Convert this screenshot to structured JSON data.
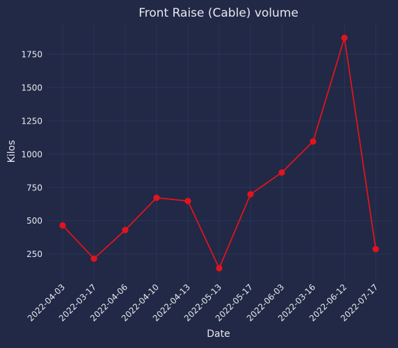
{
  "chart_data": {
    "type": "line",
    "title": "Front Raise (Cable) volume",
    "xlabel": "Date",
    "ylabel": "Kilos",
    "categories": [
      "2022-04-03",
      "2022-03-17",
      "2022-04-06",
      "2022-04-10",
      "2022-04-13",
      "2022-05-13",
      "2022-05-17",
      "2022-06-03",
      "2022-03-16",
      "2022-06-12",
      "2022-07-17"
    ],
    "series": [
      {
        "values": [
          465,
          215,
          430,
          672,
          648,
          143,
          698,
          862,
          1095,
          1873,
          287
        ]
      }
    ],
    "yticks": [
      250,
      500,
      750,
      1000,
      1250,
      1500,
      1750
    ],
    "ytick_labels": [
      "250",
      "500",
      "750",
      "1000",
      "1250",
      "1500",
      "1750"
    ],
    "ylim": [
      50,
      1980
    ],
    "grid": true,
    "legend": "none"
  },
  "colors": {
    "background": "#212946",
    "grid": "#2A3459",
    "line": "#E0141E",
    "text": "#E8E8F0"
  }
}
